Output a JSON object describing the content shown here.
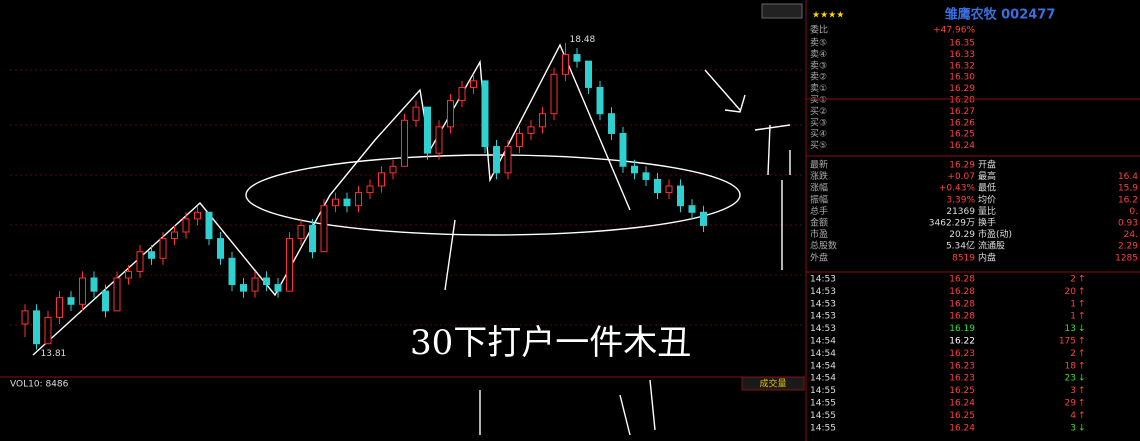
{
  "chart": {
    "ylim": [
      13.5,
      18.75
    ],
    "low_mark": 13.81,
    "high_mark": 18.48,
    "volume_label": "VOL10: 8486",
    "volume_button": "成交量",
    "annotation": "30下打户一件木丑",
    "candles": [
      {
        "open": 14.2,
        "high": 14.5,
        "low": 14.0,
        "close": 14.4
      },
      {
        "open": 14.4,
        "high": 14.5,
        "low": 13.81,
        "close": 13.9
      },
      {
        "open": 13.9,
        "high": 14.4,
        "low": 13.9,
        "close": 14.3
      },
      {
        "open": 14.3,
        "high": 14.7,
        "low": 14.2,
        "close": 14.6
      },
      {
        "open": 14.6,
        "high": 14.7,
        "low": 14.4,
        "close": 14.5
      },
      {
        "open": 14.5,
        "high": 15.0,
        "low": 14.4,
        "close": 14.9
      },
      {
        "open": 14.9,
        "high": 15.0,
        "low": 14.6,
        "close": 14.7
      },
      {
        "open": 14.7,
        "high": 14.8,
        "low": 14.3,
        "close": 14.4
      },
      {
        "open": 14.4,
        "high": 15.0,
        "low": 14.4,
        "close": 14.9
      },
      {
        "open": 14.9,
        "high": 15.1,
        "low": 14.8,
        "close": 15.0
      },
      {
        "open": 15.0,
        "high": 15.4,
        "low": 14.9,
        "close": 15.3
      },
      {
        "open": 15.3,
        "high": 15.4,
        "low": 15.1,
        "close": 15.2
      },
      {
        "open": 15.2,
        "high": 15.6,
        "low": 15.1,
        "close": 15.5
      },
      {
        "open": 15.5,
        "high": 15.7,
        "low": 15.4,
        "close": 15.6
      },
      {
        "open": 15.6,
        "high": 15.9,
        "low": 15.5,
        "close": 15.8
      },
      {
        "open": 15.8,
        "high": 16.0,
        "low": 15.7,
        "close": 15.9
      },
      {
        "open": 15.9,
        "high": 15.9,
        "low": 15.4,
        "close": 15.5
      },
      {
        "open": 15.5,
        "high": 15.6,
        "low": 15.1,
        "close": 15.2
      },
      {
        "open": 15.2,
        "high": 15.3,
        "low": 14.7,
        "close": 14.8
      },
      {
        "open": 14.8,
        "high": 14.9,
        "low": 14.6,
        "close": 14.7
      },
      {
        "open": 14.7,
        "high": 15.0,
        "low": 14.6,
        "close": 14.9
      },
      {
        "open": 14.9,
        "high": 15.0,
        "low": 14.7,
        "close": 14.8
      },
      {
        "open": 14.8,
        "high": 14.9,
        "low": 14.6,
        "close": 14.7
      },
      {
        "open": 14.7,
        "high": 15.6,
        "low": 14.7,
        "close": 15.5
      },
      {
        "open": 15.5,
        "high": 15.8,
        "low": 15.4,
        "close": 15.7
      },
      {
        "open": 15.7,
        "high": 15.8,
        "low": 15.2,
        "close": 15.3
      },
      {
        "open": 15.3,
        "high": 16.1,
        "low": 15.3,
        "close": 16.0
      },
      {
        "open": 16.0,
        "high": 16.2,
        "low": 15.9,
        "close": 16.1
      },
      {
        "open": 16.1,
        "high": 16.2,
        "low": 15.9,
        "close": 16.0
      },
      {
        "open": 16.0,
        "high": 16.3,
        "low": 15.9,
        "close": 16.2
      },
      {
        "open": 16.2,
        "high": 16.4,
        "low": 16.1,
        "close": 16.3
      },
      {
        "open": 16.3,
        "high": 16.6,
        "low": 16.2,
        "close": 16.5
      },
      {
        "open": 16.5,
        "high": 16.7,
        "low": 16.4,
        "close": 16.6
      },
      {
        "open": 16.6,
        "high": 17.4,
        "low": 16.6,
        "close": 17.3
      },
      {
        "open": 17.3,
        "high": 17.6,
        "low": 17.2,
        "close": 17.5
      },
      {
        "open": 17.5,
        "high": 17.5,
        "low": 16.7,
        "close": 16.8
      },
      {
        "open": 16.8,
        "high": 17.3,
        "low": 16.7,
        "close": 17.2
      },
      {
        "open": 17.2,
        "high": 17.7,
        "low": 17.1,
        "close": 17.6
      },
      {
        "open": 17.6,
        "high": 17.9,
        "low": 17.5,
        "close": 17.8
      },
      {
        "open": 17.8,
        "high": 18.0,
        "low": 17.7,
        "close": 17.9
      },
      {
        "open": 17.9,
        "high": 17.9,
        "low": 16.8,
        "close": 16.9
      },
      {
        "open": 16.9,
        "high": 17.0,
        "low": 16.4,
        "close": 16.5
      },
      {
        "open": 16.5,
        "high": 17.0,
        "low": 16.4,
        "close": 16.9
      },
      {
        "open": 16.9,
        "high": 17.2,
        "low": 16.8,
        "close": 17.1
      },
      {
        "open": 17.1,
        "high": 17.3,
        "low": 17.0,
        "close": 17.2
      },
      {
        "open": 17.2,
        "high": 17.5,
        "low": 17.1,
        "close": 17.4
      },
      {
        "open": 17.4,
        "high": 18.1,
        "low": 17.3,
        "close": 18.0
      },
      {
        "open": 18.0,
        "high": 18.48,
        "low": 17.9,
        "close": 18.3
      },
      {
        "open": 18.3,
        "high": 18.4,
        "low": 18.1,
        "close": 18.2
      },
      {
        "open": 18.2,
        "high": 18.2,
        "low": 17.7,
        "close": 17.8
      },
      {
        "open": 17.8,
        "high": 17.9,
        "low": 17.3,
        "close": 17.4
      },
      {
        "open": 17.4,
        "high": 17.5,
        "low": 17.0,
        "close": 17.1
      },
      {
        "open": 17.1,
        "high": 17.2,
        "low": 16.5,
        "close": 16.6
      },
      {
        "open": 16.6,
        "high": 16.7,
        "low": 16.4,
        "close": 16.5
      },
      {
        "open": 16.5,
        "high": 16.6,
        "low": 16.3,
        "close": 16.4
      },
      {
        "open": 16.4,
        "high": 16.5,
        "low": 16.1,
        "close": 16.2
      },
      {
        "open": 16.2,
        "high": 16.4,
        "low": 16.1,
        "close": 16.3
      },
      {
        "open": 16.3,
        "high": 16.4,
        "low": 15.9,
        "close": 16.0
      },
      {
        "open": 16.0,
        "high": 16.1,
        "low": 15.8,
        "close": 15.9
      },
      {
        "open": 15.9,
        "high": 16.0,
        "low": 15.6,
        "close": 15.7
      }
    ]
  },
  "quote": {
    "stars": "★★★★",
    "name": "雏鹰农牧 002477",
    "ratio_label": "委比",
    "ratio_value": "+47.96%",
    "order_book": [
      {
        "label": "卖⑤",
        "price": "16.35"
      },
      {
        "label": "卖④",
        "price": "16.33"
      },
      {
        "label": "卖③",
        "price": "16.32"
      },
      {
        "label": "卖②",
        "price": "16.30"
      },
      {
        "label": "卖①",
        "price": "16.29"
      },
      {
        "label": "买①",
        "price": "16.28"
      },
      {
        "label": "买②",
        "price": "16.27"
      },
      {
        "label": "买③",
        "price": "16.26"
      },
      {
        "label": "买④",
        "price": "16.25"
      },
      {
        "label": "买⑤",
        "price": "16.24"
      }
    ],
    "stats": [
      {
        "label": "最新",
        "value": "16.29",
        "label2": "开盘",
        "value2": ""
      },
      {
        "label": "涨跌",
        "value": "+0.07",
        "label2": "最高",
        "value2": "16.4"
      },
      {
        "label": "涨幅",
        "value": "+0.43%",
        "label2": "最低",
        "value2": "15.9"
      },
      {
        "label": "振幅",
        "value": "3.39%",
        "label2": "均价",
        "value2": "16.2"
      },
      {
        "label": "总手",
        "value": "21369",
        "label2": "量比",
        "value2": "0."
      },
      {
        "label": "金额",
        "value": "3462.29万",
        "label2": "换手",
        "value2": "0.93"
      },
      {
        "label": "市盈",
        "value": "20.29",
        "label2": "市盈(动)",
        "value2": "24."
      },
      {
        "label": "总股数",
        "value": "5.34亿",
        "label2": "流通股",
        "value2": "2.29"
      },
      {
        "label": "外盘",
        "value": "8519",
        "label2": "内盘",
        "value2": "1285"
      }
    ],
    "trades": [
      {
        "time": "14:53",
        "price": "16.28",
        "volume": "2",
        "dir": "↑"
      },
      {
        "time": "14:53",
        "price": "16.28",
        "volume": "20",
        "dir": "↑"
      },
      {
        "time": "14:53",
        "price": "16.28",
        "volume": "1",
        "dir": "↑"
      },
      {
        "time": "14:53",
        "price": "16.28",
        "volume": "1",
        "dir": "↑"
      },
      {
        "time": "14:53",
        "price": "16.19",
        "volume": "13",
        "dir": "↓"
      },
      {
        "time": "14:54",
        "price": "16.22",
        "volume": "175",
        "dir": "↑"
      },
      {
        "time": "14:54",
        "price": "16.23",
        "volume": "2",
        "dir": "↑"
      },
      {
        "time": "14:54",
        "price": "16.23",
        "volume": "18",
        "dir": "↑"
      },
      {
        "time": "14:54",
        "price": "16.23",
        "volume": "23",
        "dir": "↓"
      },
      {
        "time": "14:55",
        "price": "16.25",
        "volume": "3",
        "dir": "↑"
      },
      {
        "time": "14:55",
        "price": "16.24",
        "volume": "29",
        "dir": "↑"
      },
      {
        "time": "14:55",
        "price": "16.25",
        "volume": "4",
        "dir": "↑"
      },
      {
        "time": "14:55",
        "price": "16.24",
        "volume": "3",
        "dir": "↓"
      }
    ]
  }
}
